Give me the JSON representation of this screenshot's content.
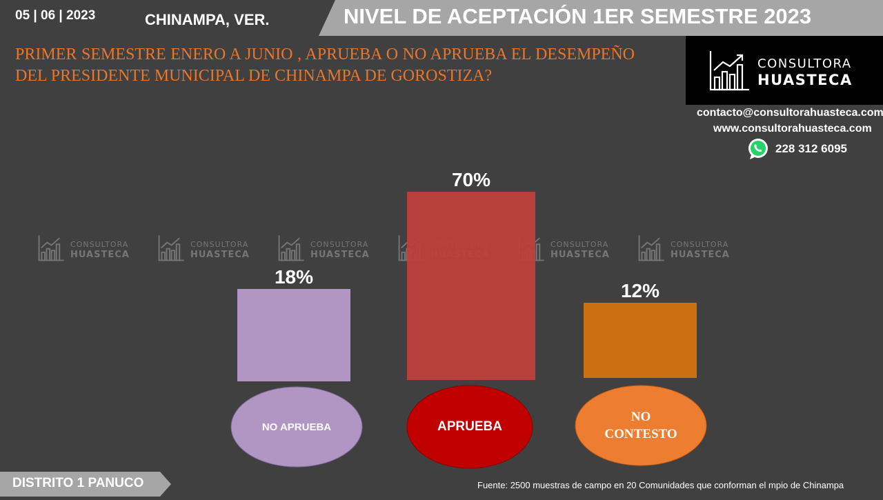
{
  "header": {
    "date": "05 | 06 | 2023",
    "location": "CHINAMPA, VER.",
    "title": "NIVEL DE ACEPTACIÓN  1ER SEMESTRE 2023"
  },
  "question": "PRIMER SEMESTRE ENERO A JUNIO , APRUEBA O NO APRUEBA EL DESEMPEÑO DEL PRESIDENTE MUNICIPAL DE  CHINAMPA DE GOROSTIZA?",
  "logo": {
    "line1": "CONSULTORA",
    "line2": "HUASTECA",
    "icon": "rising-bar-chart-icon"
  },
  "contact": {
    "email": "contacto@consultorahuasteca.com",
    "website": "www.consultorahuasteca.com",
    "phone": "228 312 6095",
    "phone_icon": "whatsapp-icon"
  },
  "watermark": {
    "line1": "CONSULTORA",
    "line2": "HUASTECA"
  },
  "chart_data": {
    "type": "bar",
    "categories": [
      "NO APRUEBA",
      "APRUEBA",
      "NO CONTESTO"
    ],
    "values": [
      18,
      70,
      12
    ],
    "value_labels": [
      "18%",
      "70%",
      "12%"
    ],
    "bar_colors": [
      "#B196C4",
      "#BE403C",
      "#CB6F12"
    ],
    "label_bg_colors": [
      "#B196C4",
      "#C00000",
      "#ED7D31"
    ],
    "ylim": [
      0,
      70
    ]
  },
  "footer": {
    "district": "DISTRITO 1 PANUCO",
    "source": "Fuente: 2500  muestras de campo en  20 Comunidades que conforman el mpio de Chinampa"
  }
}
